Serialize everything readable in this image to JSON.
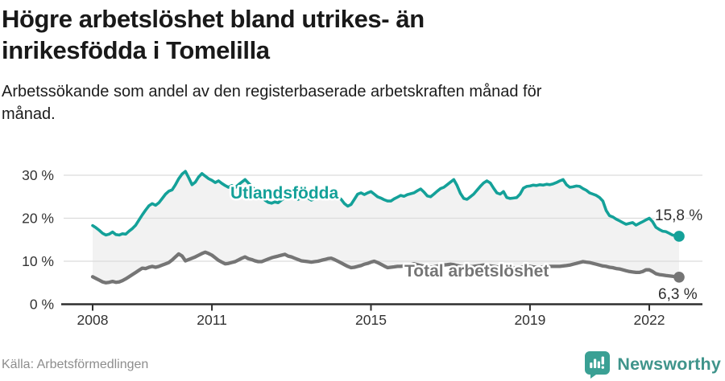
{
  "header": {
    "title_line1": "Högre arbetslöshet bland utrikes- än",
    "title_line2": "inrikesfödda i Tomelilla",
    "subtitle_line1": "Arbetssökande som andel av den registerbaserade arbetskraften månad för",
    "subtitle_line2": "månad."
  },
  "footer": {
    "source": "Källa: Arbetsförmedlingen",
    "brand": "Newsworthy",
    "brand_icon": "newsworthy-bubble-bar-chart-icon",
    "brand_color": "#3f948b",
    "brand_icon_color": "#3aa094"
  },
  "colors": {
    "series1": "#14a199",
    "series2": "#757575",
    "band_fill": "#f2f2f2",
    "gridline": "#dcdcdc",
    "axis": "#2f2f2f",
    "axis_text": "#333333",
    "value_label": "#2e2e2e"
  },
  "chart_data": {
    "type": "line",
    "title": "Högre arbetslöshet bland utrikes- än inrikesfödda i Tomelilla",
    "subtitle": "Arbetssökande som andel av den registerbaserade arbetskraften månad för månad.",
    "frequency": "monthly",
    "start_month": "2008-01",
    "end_month": "2022-10",
    "ylim": [
      0,
      32
    ],
    "grid": "horizontal",
    "legend_position": "inline-labels",
    "band_between_series": true,
    "yticks": [
      {
        "value": 0,
        "label": "0 %"
      },
      {
        "value": 10,
        "label": "10 %"
      },
      {
        "value": 20,
        "label": "20 %"
      },
      {
        "value": 30,
        "label": "30 %"
      }
    ],
    "xticks": [
      {
        "year": 2008,
        "label": "2008"
      },
      {
        "year": 2011,
        "label": "2011"
      },
      {
        "year": 2015,
        "label": "2015"
      },
      {
        "year": 2019,
        "label": "2019"
      },
      {
        "year": 2022,
        "label": "2022"
      }
    ],
    "series": [
      {
        "name": "Utlandsfödda",
        "color": "#14a199",
        "end_value": 15.8,
        "end_label": "15,8 %",
        "values": [
          18.3,
          17.8,
          17.2,
          16.5,
          16.1,
          16.3,
          16.8,
          16.2,
          16.1,
          16.4,
          16.3,
          17.0,
          17.6,
          18.4,
          19.6,
          20.8,
          21.9,
          22.9,
          23.4,
          23.0,
          23.6,
          24.6,
          25.6,
          26.3,
          26.6,
          27.8,
          29.2,
          30.3,
          30.9,
          29.4,
          27.8,
          28.4,
          29.6,
          30.4,
          29.8,
          29.2,
          28.8,
          28.3,
          28.7,
          28.1,
          27.6,
          27.2,
          27.6,
          27.1,
          27.8,
          28.4,
          29.0,
          28.2,
          27.4,
          26.6,
          25.8,
          25.0,
          24.2,
          23.7,
          23.5,
          23.8,
          23.6,
          24.2,
          24.8,
          25.3,
          25.6,
          24.9,
          24.4,
          24.8,
          25.4,
          24.7,
          24.2,
          24.6,
          25.2,
          25.7,
          25.1,
          24.6,
          25.0,
          24.6,
          24.9,
          24.4,
          23.4,
          22.8,
          23.2,
          24.4,
          25.6,
          25.9,
          25.5,
          25.9,
          26.2,
          25.6,
          25.0,
          24.7,
          24.3,
          24.0,
          24.0,
          24.5,
          24.9,
          25.3,
          25.1,
          25.5,
          25.7,
          25.9,
          26.4,
          26.8,
          26.1,
          25.2,
          25.0,
          25.6,
          26.3,
          26.9,
          27.2,
          27.8,
          28.4,
          29.0,
          27.6,
          25.8,
          24.6,
          24.4,
          25.0,
          25.6,
          26.5,
          27.4,
          28.2,
          28.7,
          28.2,
          27.0,
          25.9,
          25.6,
          26.2,
          24.8,
          24.6,
          24.7,
          24.8,
          25.6,
          27.0,
          27.4,
          27.5,
          27.7,
          27.6,
          27.8,
          27.7,
          27.9,
          27.8,
          28.0,
          28.3,
          28.7,
          29.0,
          27.8,
          27.2,
          27.3,
          27.5,
          27.4,
          26.9,
          26.5,
          25.9,
          25.6,
          25.3,
          24.8,
          24.0,
          21.8,
          20.6,
          20.3,
          19.8,
          19.4,
          19.0,
          18.6,
          18.8,
          19.0,
          18.4,
          18.8,
          19.2,
          19.6,
          20.0,
          19.2,
          17.9,
          17.4,
          17.0,
          16.9,
          16.5,
          16.1,
          15.9,
          15.8
        ]
      },
      {
        "name": "Total arbetslöshet",
        "color": "#757575",
        "end_value": 6.3,
        "end_label": "6,3 %",
        "values": [
          6.4,
          6.0,
          5.6,
          5.2,
          5.0,
          5.1,
          5.3,
          5.1,
          5.2,
          5.5,
          5.9,
          6.4,
          6.9,
          7.4,
          7.9,
          8.4,
          8.3,
          8.6,
          8.8,
          8.6,
          8.8,
          9.1,
          9.4,
          9.7,
          10.3,
          11.0,
          11.7,
          11.2,
          10.1,
          10.4,
          10.7,
          11.0,
          11.4,
          11.8,
          12.1,
          11.8,
          11.4,
          10.8,
          10.2,
          9.8,
          9.4,
          9.5,
          9.7,
          9.9,
          10.3,
          10.7,
          11.0,
          10.6,
          10.4,
          10.1,
          9.9,
          9.9,
          10.2,
          10.5,
          10.8,
          11.0,
          11.2,
          11.4,
          11.6,
          11.2,
          11.0,
          10.7,
          10.4,
          10.1,
          10.0,
          9.9,
          9.8,
          9.9,
          10.0,
          10.2,
          10.4,
          10.6,
          10.7,
          10.4,
          10.0,
          9.6,
          9.2,
          8.8,
          8.5,
          8.6,
          8.8,
          9.0,
          9.3,
          9.5,
          9.8,
          10.0,
          9.7,
          9.3,
          8.9,
          8.5,
          8.6,
          8.7,
          8.8,
          8.8,
          8.9,
          9.0,
          9.2,
          9.4,
          9.2,
          9.0,
          8.8,
          8.7,
          8.6,
          8.7,
          8.9,
          9.0,
          9.1,
          9.2,
          9.3,
          9.2,
          9.0,
          8.8,
          8.7,
          8.6,
          8.7,
          8.8,
          8.9,
          9.0,
          9.1,
          9.0,
          8.9,
          8.8,
          8.7,
          8.6,
          8.5,
          8.4,
          8.3,
          8.4,
          8.5,
          8.6,
          8.7,
          8.8,
          8.8,
          8.7,
          8.6,
          8.6,
          8.7,
          8.7,
          8.8,
          8.8,
          8.8,
          8.8,
          8.9,
          9.0,
          9.1,
          9.3,
          9.5,
          9.7,
          9.9,
          9.8,
          9.7,
          9.5,
          9.3,
          9.1,
          8.9,
          8.8,
          8.6,
          8.5,
          8.3,
          8.2,
          8.0,
          7.8,
          7.6,
          7.5,
          7.4,
          7.4,
          7.6,
          8.0,
          8.0,
          7.6,
          7.1,
          6.9,
          6.8,
          6.7,
          6.6,
          6.5,
          6.4,
          6.3
        ]
      }
    ]
  }
}
